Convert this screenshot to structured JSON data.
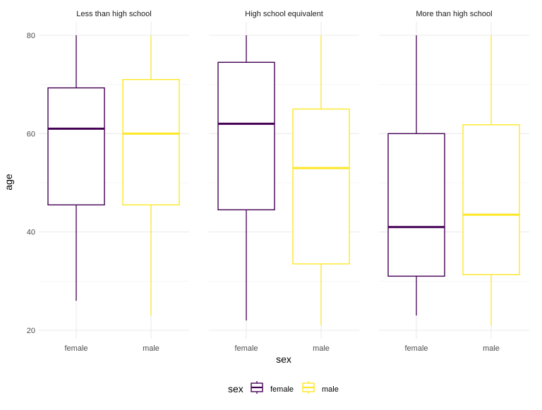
{
  "chart_data": {
    "type": "boxplot",
    "facet_variable": "education",
    "x_label": "sex",
    "y_label": "age",
    "y_ticks": [
      20,
      40,
      60,
      80
    ],
    "ylim": [
      19,
      82
    ],
    "categories": [
      "female",
      "male"
    ],
    "legend": {
      "title": "sex",
      "position": "bottom",
      "entries": [
        {
          "label": "female",
          "color": "#440154"
        },
        {
          "label": "male",
          "color": "#FDE725"
        }
      ]
    },
    "panels": [
      {
        "title": "Less than high school",
        "boxes": [
          {
            "category": "female",
            "min": 26,
            "q1": 45.5,
            "median": 61,
            "q3": 69.3,
            "max": 80
          },
          {
            "category": "male",
            "min": 23,
            "q1": 45.5,
            "median": 60,
            "q3": 71,
            "max": 80
          }
        ]
      },
      {
        "title": "High school equivalent",
        "boxes": [
          {
            "category": "female",
            "min": 22,
            "q1": 44.5,
            "median": 62,
            "q3": 74.5,
            "max": 80
          },
          {
            "category": "male",
            "min": 21,
            "q1": 33.5,
            "median": 53,
            "q3": 65,
            "max": 80
          }
        ]
      },
      {
        "title": "More than high school",
        "boxes": [
          {
            "category": "female",
            "min": 23,
            "q1": 31,
            "median": 41,
            "q3": 60,
            "max": 80
          },
          {
            "category": "male",
            "min": 21,
            "q1": 31.3,
            "median": 43.5,
            "q3": 61.8,
            "max": 80
          }
        ]
      }
    ]
  }
}
